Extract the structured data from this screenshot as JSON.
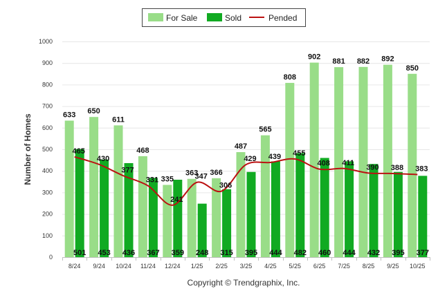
{
  "chart_data": {
    "type": "bar",
    "title": "",
    "xlabel": "",
    "ylabel": "Number of Homes",
    "ylim": [
      0,
      1000
    ],
    "yticks": [
      "0",
      "100",
      "200",
      "300",
      "400",
      "500",
      "600",
      "700",
      "800",
      "900",
      "1000"
    ],
    "categories": [
      "8/24",
      "9/24",
      "10/24",
      "11/24",
      "12/24",
      "1/25",
      "2/25",
      "3/25",
      "4/25",
      "5/25",
      "6/25",
      "7/25",
      "8/25",
      "9/25",
      "10/25"
    ],
    "series": [
      {
        "name": "For Sale",
        "type": "bar",
        "color": "#99dd88",
        "values": [
          633,
          650,
          611,
          468,
          335,
          363,
          366,
          487,
          565,
          808,
          902,
          881,
          882,
          892,
          850
        ]
      },
      {
        "name": "Sold",
        "type": "bar",
        "color": "#11aa22",
        "values": [
          501,
          453,
          436,
          367,
          359,
          248,
          315,
          395,
          444,
          482,
          460,
          444,
          432,
          395,
          377
        ]
      },
      {
        "name": "Pended",
        "type": "line",
        "color": "#bb1111",
        "values": [
          465,
          430,
          377,
          331,
          241,
          347,
          306,
          429,
          439,
          455,
          408,
          411,
          390,
          388,
          383
        ]
      }
    ],
    "legend": {
      "position": "top-center"
    }
  },
  "footer": {
    "copyright": "Copyright © Trendgraphix, Inc."
  }
}
